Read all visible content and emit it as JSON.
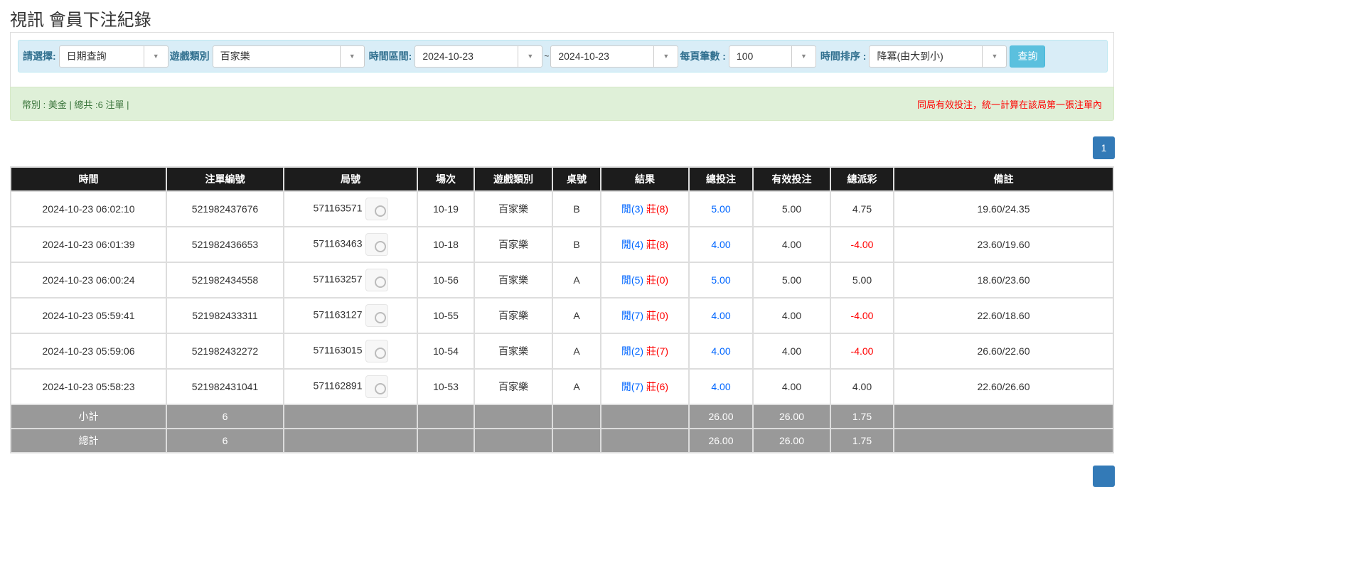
{
  "title": "視訊 會員下注紀錄",
  "filters": {
    "select_label": "請選擇:",
    "select_value": "日期查詢",
    "game_label": "遊戲類別",
    "game_value": "百家樂",
    "range_label": "時間區間:",
    "date_from": "2024-10-23",
    "tilde": "~",
    "date_to": "2024-10-23",
    "per_page_label": "每頁筆數 :",
    "per_page_value": "100",
    "sort_label": "時間排序 :",
    "sort_value": "降冪(由大到小)",
    "query_button": "查詢"
  },
  "summary": {
    "left": "幣別 : 美金 | 總共 :6 注單 |",
    "right": "同局有效投注，統一計算在該局第一張注單內"
  },
  "pagination": {
    "current": "1"
  },
  "table": {
    "headers": [
      "時間",
      "注單編號",
      "局號",
      "場次",
      "遊戲類別",
      "桌號",
      "結果",
      "總投注",
      "有效投注",
      "總派彩",
      "備註"
    ],
    "rows": [
      {
        "time": "2024-10-23 06:02:10",
        "bet_id": "521982437676",
        "round": "571163571",
        "session": "10-19",
        "game": "百家樂",
        "table": "B",
        "player": "閒(3)",
        "banker": "莊(8)",
        "total": "5.00",
        "valid": "5.00",
        "payout": "4.75",
        "payout_neg": false,
        "note": "19.60/24.35"
      },
      {
        "time": "2024-10-23 06:01:39",
        "bet_id": "521982436653",
        "round": "571163463",
        "session": "10-18",
        "game": "百家樂",
        "table": "B",
        "player": "閒(4)",
        "banker": "莊(8)",
        "total": "4.00",
        "valid": "4.00",
        "payout": "-4.00",
        "payout_neg": true,
        "note": "23.60/19.60"
      },
      {
        "time": "2024-10-23 06:00:24",
        "bet_id": "521982434558",
        "round": "571163257",
        "session": "10-56",
        "game": "百家樂",
        "table": "A",
        "player": "閒(5)",
        "banker": "莊(0)",
        "total": "5.00",
        "valid": "5.00",
        "payout": "5.00",
        "payout_neg": false,
        "note": "18.60/23.60"
      },
      {
        "time": "2024-10-23 05:59:41",
        "bet_id": "521982433311",
        "round": "571163127",
        "session": "10-55",
        "game": "百家樂",
        "table": "A",
        "player": "閒(7)",
        "banker": "莊(0)",
        "total": "4.00",
        "valid": "4.00",
        "payout": "-4.00",
        "payout_neg": true,
        "note": "22.60/18.60"
      },
      {
        "time": "2024-10-23 05:59:06",
        "bet_id": "521982432272",
        "round": "571163015",
        "session": "10-54",
        "game": "百家樂",
        "table": "A",
        "player": "閒(2)",
        "banker": "莊(7)",
        "total": "4.00",
        "valid": "4.00",
        "payout": "-4.00",
        "payout_neg": true,
        "note": "26.60/22.60"
      },
      {
        "time": "2024-10-23 05:58:23",
        "bet_id": "521982431041",
        "round": "571162891",
        "session": "10-53",
        "game": "百家樂",
        "table": "A",
        "player": "閒(7)",
        "banker": "莊(6)",
        "total": "4.00",
        "valid": "4.00",
        "payout": "4.00",
        "payout_neg": false,
        "note": "22.60/26.60"
      }
    ],
    "subtotal": {
      "label": "小計",
      "count": "6",
      "total": "26.00",
      "valid": "26.00",
      "payout": "1.75"
    },
    "grand_total": {
      "label": "總計",
      "count": "6",
      "total": "26.00",
      "valid": "26.00",
      "payout": "1.75"
    }
  }
}
